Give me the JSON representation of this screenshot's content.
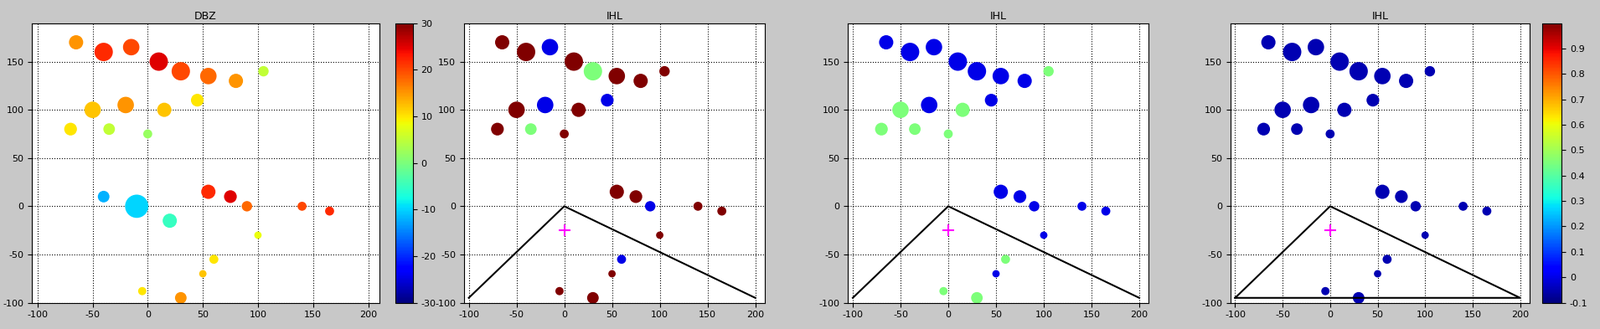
{
  "chart_data": [
    {
      "type": "scatter",
      "title": "DBZ",
      "x": [
        -65,
        -40,
        -15,
        10,
        30,
        55,
        80,
        105,
        -50,
        -20,
        15,
        45,
        -70,
        -35,
        0,
        55,
        75,
        90,
        140,
        165,
        60,
        30,
        -5,
        100,
        50,
        -10,
        20,
        -40
      ],
      "y": [
        170,
        160,
        165,
        150,
        140,
        135,
        130,
        140,
        100,
        105,
        100,
        110,
        80,
        80,
        75,
        15,
        10,
        0,
        0,
        -5,
        -55,
        -95,
        -88,
        -30,
        -70,
        0,
        -15,
        10
      ],
      "values": [
        15,
        22,
        20,
        25,
        20,
        18,
        15,
        5,
        12,
        15,
        12,
        10,
        10,
        5,
        2,
        22,
        25,
        18,
        20,
        22,
        10,
        15,
        10,
        8,
        12,
        -10,
        -5,
        -12
      ],
      "sizes": [
        150,
        250,
        200,
        250,
        250,
        200,
        150,
        80,
        200,
        200,
        150,
        120,
        120,
        100,
        60,
        150,
        120,
        80,
        60,
        60,
        60,
        100,
        50,
        40,
        40,
        400,
        150,
        100
      ],
      "marker": "o",
      "xlim": [
        -105,
        210
      ],
      "xticks": [
        -100,
        -50,
        0,
        50,
        100,
        150,
        200
      ],
      "ylim": [
        -100,
        190
      ],
      "yticks": [
        -100,
        -50,
        0,
        50,
        100,
        150
      ],
      "color_range": [
        -30,
        30
      ],
      "colorbar_ticks": [
        -30,
        -20,
        -10,
        0,
        10,
        20,
        30
      ],
      "grid": true
    },
    {
      "type": "scatter",
      "title": "IHL",
      "x": [
        -65,
        -40,
        -15,
        10,
        30,
        55,
        80,
        105,
        -50,
        -20,
        15,
        45,
        -70,
        -35,
        0,
        55,
        75,
        90,
        140,
        165,
        60,
        30,
        -5,
        100,
        50
      ],
      "y": [
        170,
        160,
        165,
        150,
        140,
        135,
        130,
        140,
        100,
        105,
        100,
        110,
        80,
        80,
        75,
        15,
        10,
        0,
        0,
        -5,
        -55,
        -95,
        -88,
        -30,
        -70
      ],
      "values": [
        1,
        1,
        0,
        1,
        0.45,
        1,
        1,
        1,
        1,
        0,
        1,
        0,
        1,
        0.45,
        1,
        1,
        1,
        0,
        1,
        1,
        0,
        1,
        1,
        1,
        1
      ],
      "sizes": [
        150,
        250,
        200,
        250,
        250,
        200,
        150,
        80,
        200,
        200,
        150,
        120,
        120,
        100,
        60,
        150,
        120,
        80,
        60,
        60,
        60,
        100,
        50,
        40,
        40
      ],
      "marker": "o",
      "xlim": [
        -105,
        210
      ],
      "xticks": [
        -100,
        -50,
        0,
        50,
        100,
        150,
        200
      ],
      "ylim": [
        -100,
        190
      ],
      "yticks": [
        -100,
        -50,
        0,
        50,
        100,
        150
      ],
      "color_range": [
        -0.1,
        1.0
      ],
      "lines": [
        {
          "x": [
            -100,
            0,
            200
          ],
          "y": [
            -95,
            0,
            -95
          ],
          "color": "black"
        }
      ],
      "points": [
        {
          "x": 0,
          "y": -25,
          "color": "magenta",
          "marker": "+"
        }
      ],
      "grid": true
    },
    {
      "type": "scatter",
      "title": "IHL",
      "x": [
        -65,
        -40,
        -15,
        10,
        30,
        55,
        80,
        105,
        -50,
        -20,
        15,
        45,
        -70,
        -35,
        0,
        55,
        75,
        90,
        140,
        165,
        60,
        30,
        -5,
        100,
        50
      ],
      "y": [
        170,
        160,
        165,
        150,
        140,
        135,
        130,
        140,
        100,
        105,
        100,
        110,
        80,
        80,
        75,
        15,
        10,
        0,
        0,
        -5,
        -55,
        -95,
        -88,
        -30,
        -70
      ],
      "values": [
        0,
        0,
        0,
        0,
        0,
        0,
        0,
        0.45,
        0.45,
        0,
        0.45,
        0,
        0.45,
        0.45,
        0.45,
        0,
        0,
        0,
        0,
        0,
        0.45,
        0.45,
        0.45,
        0,
        0
      ],
      "sizes": [
        150,
        250,
        200,
        250,
        250,
        200,
        150,
        80,
        200,
        200,
        150,
        120,
        120,
        100,
        60,
        150,
        120,
        80,
        60,
        60,
        60,
        100,
        50,
        40,
        40
      ],
      "marker": "o",
      "xlim": [
        -105,
        210
      ],
      "xticks": [
        -100,
        -50,
        0,
        50,
        100,
        150,
        200
      ],
      "ylim": [
        -100,
        190
      ],
      "yticks": [
        -100,
        -50,
        0,
        50,
        100,
        150
      ],
      "color_range": [
        -0.1,
        1.0
      ],
      "lines": [
        {
          "x": [
            -100,
            0,
            200
          ],
          "y": [
            -95,
            0,
            -95
          ],
          "color": "black"
        }
      ],
      "points": [
        {
          "x": 0,
          "y": -25,
          "color": "magenta",
          "marker": "+"
        }
      ],
      "grid": true
    },
    {
      "type": "scatter",
      "title": "IHL",
      "x": [
        -65,
        -40,
        -15,
        10,
        30,
        55,
        80,
        105,
        -50,
        -20,
        15,
        45,
        -70,
        -35,
        0,
        55,
        75,
        90,
        140,
        165,
        60,
        30,
        -5,
        100,
        50
      ],
      "y": [
        170,
        160,
        165,
        150,
        140,
        135,
        130,
        140,
        100,
        105,
        100,
        110,
        80,
        80,
        75,
        15,
        10,
        0,
        0,
        -5,
        -55,
        -95,
        -88,
        -30,
        -70
      ],
      "values": [
        -0.05,
        -0.05,
        -0.05,
        -0.05,
        -0.05,
        -0.05,
        -0.05,
        -0.05,
        -0.05,
        -0.05,
        -0.05,
        -0.05,
        -0.05,
        -0.05,
        -0.05,
        -0.05,
        -0.05,
        -0.05,
        -0.05,
        -0.05,
        -0.05,
        -0.05,
        -0.05,
        -0.05,
        -0.05
      ],
      "sizes": [
        150,
        250,
        200,
        250,
        250,
        200,
        150,
        80,
        200,
        200,
        150,
        120,
        120,
        100,
        60,
        150,
        120,
        80,
        60,
        60,
        60,
        100,
        50,
        40,
        40
      ],
      "marker": "o",
      "xlim": [
        -105,
        210
      ],
      "xticks": [
        -100,
        -50,
        0,
        50,
        100,
        150,
        200
      ],
      "ylim": [
        -100,
        190
      ],
      "yticks": [
        -100,
        -50,
        0,
        50,
        100,
        150
      ],
      "color_range": [
        -0.1,
        1.0
      ],
      "colorbar_ticks": [
        -0.1,
        0,
        0.1,
        0.2,
        0.3,
        0.4,
        0.5,
        0.6,
        0.7,
        0.8,
        0.9
      ],
      "lines": [
        {
          "x": [
            -100,
            0,
            200,
            -100
          ],
          "y": [
            -95,
            0,
            -95,
            -95
          ],
          "color": "black"
        }
      ],
      "points": [
        {
          "x": 0,
          "y": -25,
          "color": "magenta",
          "marker": "+"
        }
      ],
      "grid": true
    }
  ]
}
